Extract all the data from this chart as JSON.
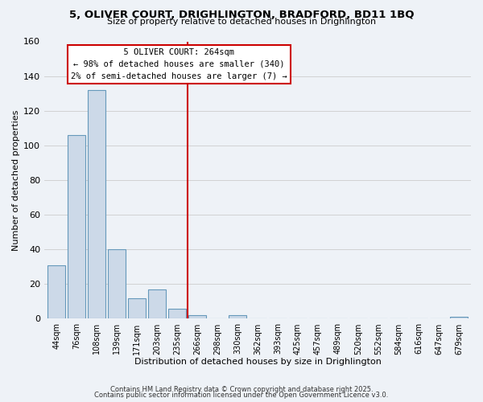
{
  "title": "5, OLIVER COURT, DRIGHLINGTON, BRADFORD, BD11 1BQ",
  "subtitle": "Size of property relative to detached houses in Drighlington",
  "xlabel": "Distribution of detached houses by size in Drighlington",
  "ylabel": "Number of detached properties",
  "bar_labels": [
    "44sqm",
    "76sqm",
    "108sqm",
    "139sqm",
    "171sqm",
    "203sqm",
    "235sqm",
    "266sqm",
    "298sqm",
    "330sqm",
    "362sqm",
    "393sqm",
    "425sqm",
    "457sqm",
    "489sqm",
    "520sqm",
    "552sqm",
    "584sqm",
    "616sqm",
    "647sqm",
    "679sqm"
  ],
  "bar_values": [
    31,
    106,
    132,
    40,
    12,
    17,
    6,
    2,
    0,
    2,
    0,
    0,
    0,
    0,
    0,
    0,
    0,
    0,
    0,
    0,
    1
  ],
  "bar_color": "#ccd9e8",
  "bar_edge_color": "#6699bb",
  "vline_color": "#cc0000",
  "ylim": [
    0,
    160
  ],
  "yticks": [
    0,
    20,
    40,
    60,
    80,
    100,
    120,
    140,
    160
  ],
  "annotation_title": "5 OLIVER COURT: 264sqm",
  "annotation_line1": "← 98% of detached houses are smaller (340)",
  "annotation_line2": "2% of semi-detached houses are larger (7) →",
  "annotation_box_color": "#ffffff",
  "annotation_box_edge": "#cc0000",
  "grid_color": "#cccccc",
  "bg_color": "#eef2f7",
  "footer1": "Contains HM Land Registry data © Crown copyright and database right 2025.",
  "footer2": "Contains public sector information licensed under the Open Government Licence v3.0."
}
